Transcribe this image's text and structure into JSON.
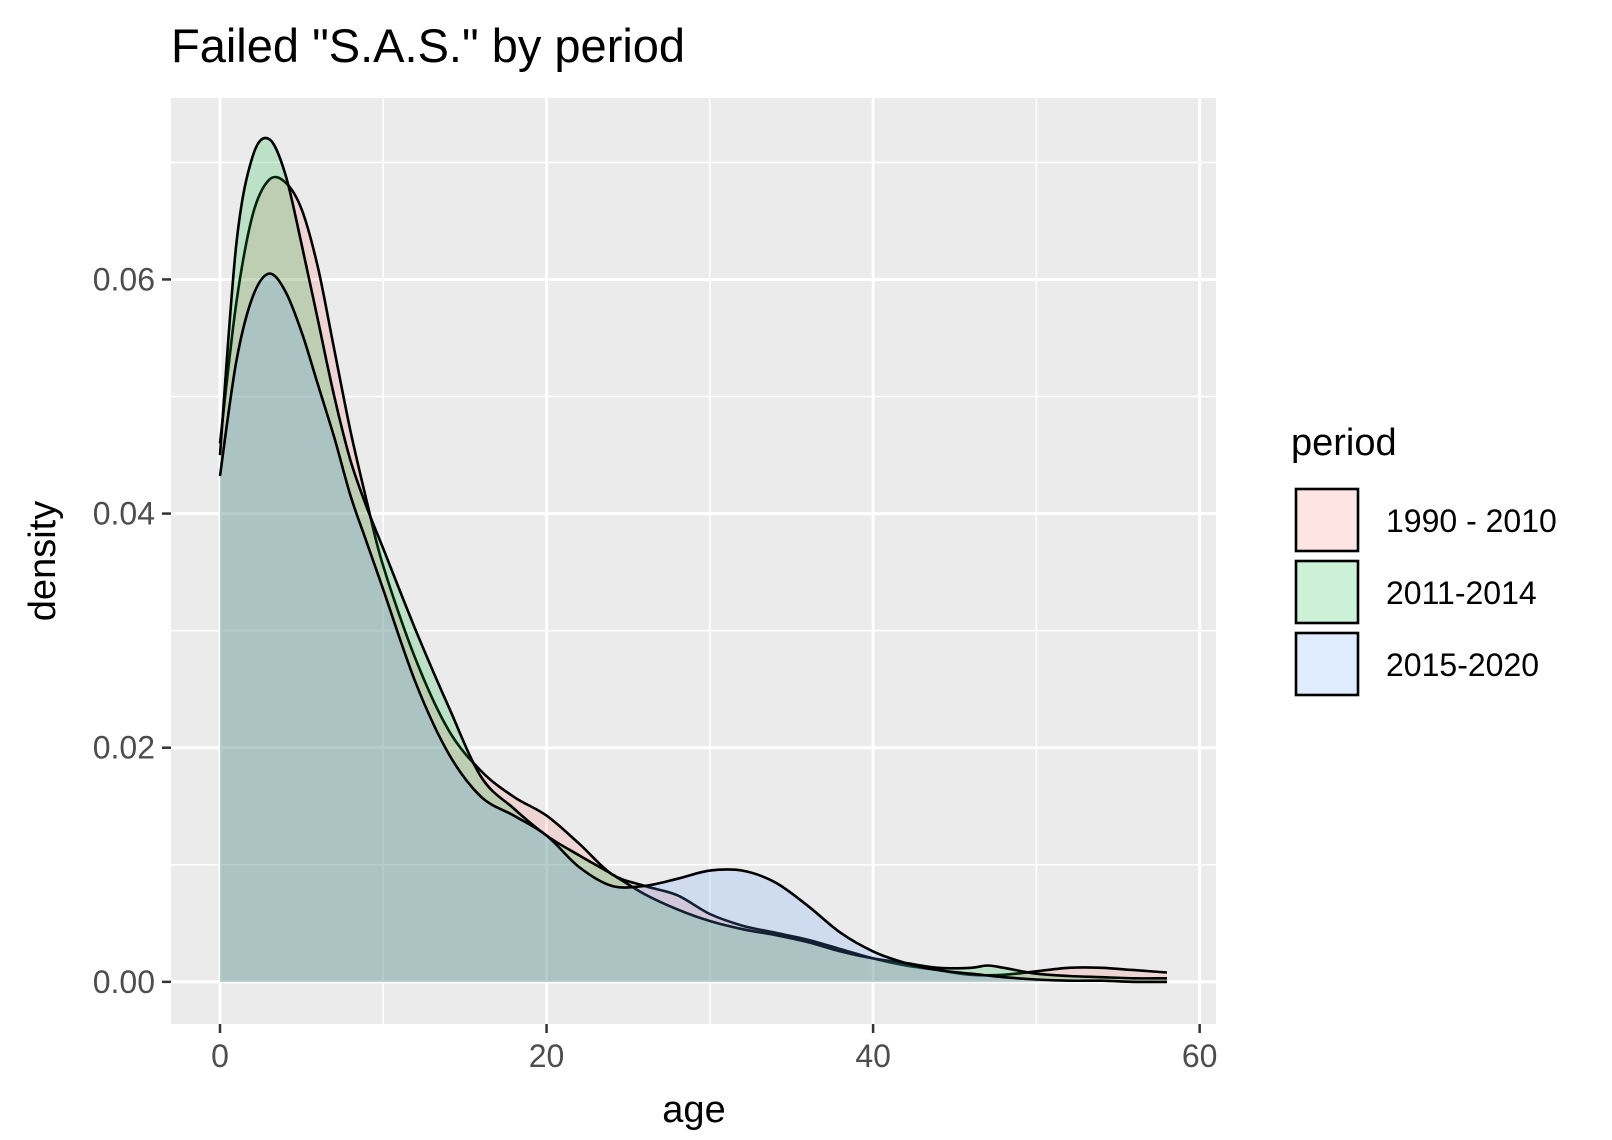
{
  "chart_data": {
    "type": "area",
    "title": "Failed \"S.A.S.\" by period",
    "xlabel": "age",
    "ylabel": "density",
    "xlim": [
      -3,
      61
    ],
    "ylim": [
      -0.0036,
      0.0755
    ],
    "x_ticks": [
      0,
      20,
      40,
      60
    ],
    "x_tick_labels": [
      "0",
      "20",
      "40",
      "60"
    ],
    "y_ticks": [
      0.0,
      0.02,
      0.04,
      0.06
    ],
    "y_tick_labels": [
      "0.00",
      "0.02",
      "0.04",
      "0.06"
    ],
    "grid": true,
    "legend": {
      "title": "period",
      "position": "right"
    },
    "series": [
      {
        "name": "1990 - 2010",
        "color": "#F8766D",
        "points": [
          [
            0,
            0.046
          ],
          [
            1,
            0.058
          ],
          [
            2,
            0.0655
          ],
          [
            3,
            0.0685
          ],
          [
            4,
            0.0683
          ],
          [
            5,
            0.066
          ],
          [
            6,
            0.061
          ],
          [
            7,
            0.054
          ],
          [
            8,
            0.047
          ],
          [
            9,
            0.041
          ],
          [
            10,
            0.0355
          ],
          [
            12,
            0.0275
          ],
          [
            14,
            0.0215
          ],
          [
            16,
            0.018
          ],
          [
            18,
            0.0158
          ],
          [
            20,
            0.0142
          ],
          [
            22,
            0.0118
          ],
          [
            24,
            0.0092
          ],
          [
            26,
            0.0082
          ],
          [
            28,
            0.0074
          ],
          [
            30,
            0.0058
          ],
          [
            32,
            0.0048
          ],
          [
            34,
            0.0042
          ],
          [
            36,
            0.0036
          ],
          [
            38,
            0.0028
          ],
          [
            40,
            0.002
          ],
          [
            42,
            0.0014
          ],
          [
            44,
            0.001
          ],
          [
            46,
            0.0006
          ],
          [
            48,
            0.0006
          ],
          [
            50,
            0.0009
          ],
          [
            52,
            0.0012
          ],
          [
            54,
            0.0012
          ],
          [
            56,
            0.001
          ],
          [
            58,
            0.0008
          ]
        ]
      },
      {
        "name": "2011-2014",
        "color": "#00BA38",
        "points": [
          [
            0,
            0.045
          ],
          [
            1,
            0.063
          ],
          [
            2,
            0.0705
          ],
          [
            3,
            0.072
          ],
          [
            4,
            0.069
          ],
          [
            5,
            0.063
          ],
          [
            6,
            0.0565
          ],
          [
            7,
            0.05
          ],
          [
            8,
            0.0445
          ],
          [
            9,
            0.0405
          ],
          [
            10,
            0.037
          ],
          [
            12,
            0.03
          ],
          [
            14,
            0.0235
          ],
          [
            16,
            0.0175
          ],
          [
            18,
            0.0148
          ],
          [
            20,
            0.0125
          ],
          [
            22,
            0.0108
          ],
          [
            24,
            0.0092
          ],
          [
            26,
            0.0075
          ],
          [
            28,
            0.0062
          ],
          [
            30,
            0.0052
          ],
          [
            32,
            0.0045
          ],
          [
            34,
            0.004
          ],
          [
            36,
            0.0034
          ],
          [
            38,
            0.0026
          ],
          [
            40,
            0.002
          ],
          [
            42,
            0.0016
          ],
          [
            44,
            0.0012
          ],
          [
            46,
            0.0012
          ],
          [
            47,
            0.0014
          ],
          [
            48,
            0.0012
          ],
          [
            50,
            0.0007
          ],
          [
            52,
            0.0005
          ],
          [
            54,
            0.0004
          ],
          [
            56,
            0.0003
          ],
          [
            58,
            0.0003
          ]
        ]
      },
      {
        "name": "2015-2020",
        "color": "#619CFF",
        "points": [
          [
            0,
            0.0432
          ],
          [
            1,
            0.053
          ],
          [
            2,
            0.0585
          ],
          [
            3,
            0.0605
          ],
          [
            4,
            0.059
          ],
          [
            5,
            0.0555
          ],
          [
            6,
            0.051
          ],
          [
            7,
            0.0465
          ],
          [
            8,
            0.0415
          ],
          [
            9,
            0.0375
          ],
          [
            10,
            0.0335
          ],
          [
            12,
            0.0255
          ],
          [
            14,
            0.0195
          ],
          [
            16,
            0.0158
          ],
          [
            18,
            0.0142
          ],
          [
            20,
            0.0125
          ],
          [
            22,
            0.0098
          ],
          [
            24,
            0.0082
          ],
          [
            26,
            0.0082
          ],
          [
            28,
            0.0088
          ],
          [
            30,
            0.0095
          ],
          [
            32,
            0.0095
          ],
          [
            34,
            0.0085
          ],
          [
            36,
            0.0065
          ],
          [
            38,
            0.0042
          ],
          [
            40,
            0.0026
          ],
          [
            42,
            0.0016
          ],
          [
            44,
            0.001
          ],
          [
            46,
            0.0007
          ],
          [
            48,
            0.0004
          ],
          [
            50,
            0.0002
          ],
          [
            52,
            0.0001
          ],
          [
            54,
            0.0001
          ],
          [
            56,
            0.0
          ],
          [
            58,
            0.0
          ]
        ]
      }
    ]
  }
}
